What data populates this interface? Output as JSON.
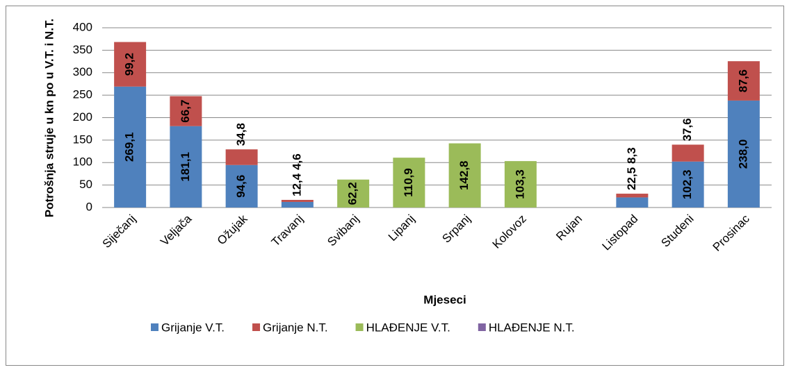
{
  "chart_data": {
    "type": "stacked_bar",
    "y_label": "Potrošnja struje u kn po u V.T. i N.T.",
    "x_label": "Mjeseci",
    "categories": [
      "Siječanj",
      "Veljača",
      "Ožujak",
      "Travanj",
      "Svibanj",
      "Lipanj",
      "Srpanj",
      "Kolovoz",
      "Rujan",
      "Listopad",
      "Studeni",
      "Prosinac"
    ],
    "series": [
      {
        "name": "Grijanje V.T.",
        "color": "#4f81bd",
        "outside_label_color": "#000000",
        "values": [
          269.1,
          181.1,
          94.6,
          12.4,
          null,
          null,
          null,
          null,
          null,
          22.5,
          102.3,
          238
        ],
        "value_labels": [
          "269,1",
          "181,1",
          "94,6",
          "12,4",
          null,
          null,
          null,
          null,
          null,
          "22,5",
          "102,3",
          "238,0"
        ]
      },
      {
        "name": "Grijanje N.T.",
        "color": "#c0504d",
        "outside_label_color": "#ff0000",
        "values": [
          99.2,
          66.7,
          34.8,
          4.6,
          null,
          null,
          null,
          null,
          null,
          8.3,
          37.6,
          87.6
        ],
        "value_labels": [
          "99,2",
          "66,7",
          "34,8",
          "4,6",
          null,
          null,
          null,
          null,
          null,
          "8,3",
          "37,6",
          "87,6"
        ]
      },
      {
        "name": "HLAĐENJE V.T.",
        "color": "#9bbb59",
        "outside_label_color": "#000000",
        "values": [
          null,
          null,
          null,
          null,
          62.2,
          110.9,
          142.8,
          103.3,
          null,
          null,
          null,
          null
        ],
        "value_labels": [
          null,
          null,
          null,
          null,
          "62,2",
          "110,9",
          "142,8",
          "103,3",
          null,
          null,
          null,
          null
        ]
      },
      {
        "name": "HLAĐENJE N.T.",
        "color": "#8064a2",
        "outside_label_color": "#000000",
        "values": [
          null,
          null,
          null,
          null,
          null,
          null,
          null,
          null,
          null,
          null,
          null,
          null
        ]
      }
    ],
    "ylim": [
      0,
      400
    ],
    "yticks": [
      0,
      50,
      100,
      150,
      200,
      250,
      300,
      350,
      400
    ],
    "grid": true
  }
}
